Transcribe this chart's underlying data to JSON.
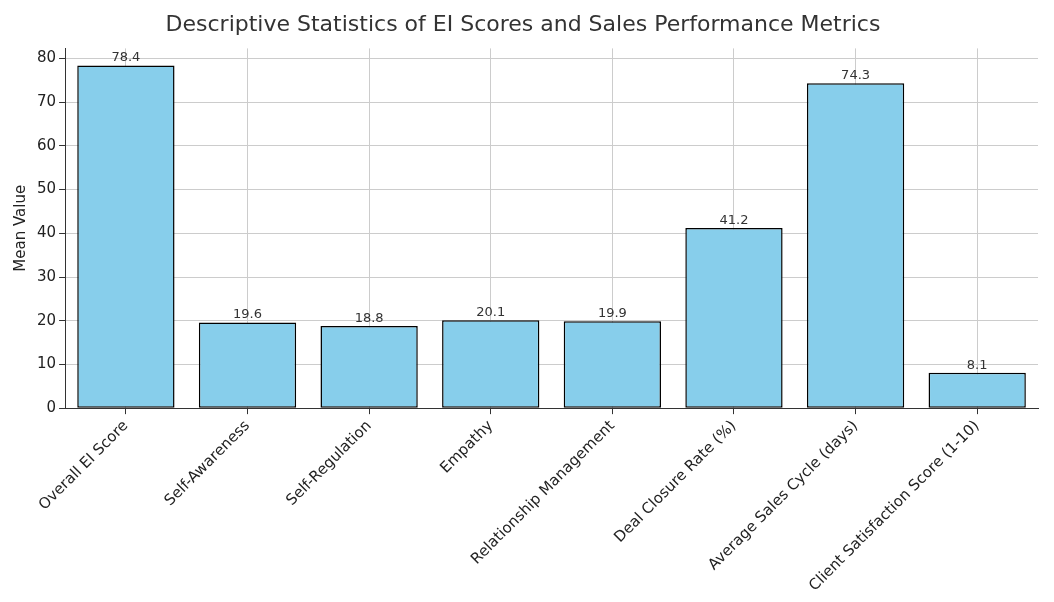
{
  "chart_data": {
    "type": "bar",
    "title": "Descriptive Statistics of EI Scores and Sales Performance Metrics",
    "ylabel": "Mean Value",
    "categories": [
      "Overall EI Score",
      "Self-Awareness",
      "Self-Regulation",
      "Empathy",
      "Relationship Management",
      "Deal Closure Rate (%)",
      "Average Sales Cycle (days)",
      "Client Satisfaction Score (1-10)"
    ],
    "values": [
      78.4,
      19.6,
      18.8,
      20.1,
      19.9,
      41.2,
      74.3,
      8.1
    ],
    "color": "#87ceeb",
    "ylim": [
      0,
      82.3
    ],
    "yticks": [
      0,
      10,
      20,
      30,
      40,
      50,
      60,
      70,
      80
    ],
    "grid": true,
    "data_labels": true,
    "legend": false
  }
}
